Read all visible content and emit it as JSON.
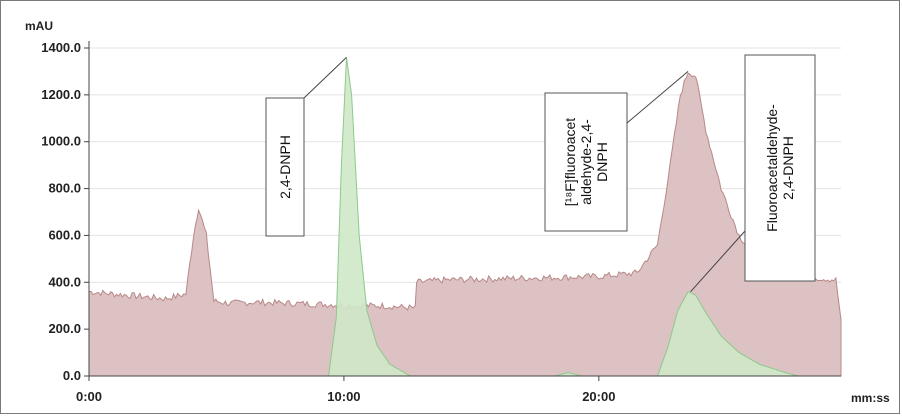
{
  "chart_data": {
    "type": "area",
    "y_unit": "mAU",
    "x_unit": "mm:ss",
    "ylim": [
      0,
      1400
    ],
    "xlim": [
      0,
      29.5
    ],
    "y_ticks": [
      "0.0",
      "200.0",
      "400.0",
      "600.0",
      "800.0",
      "1000.0",
      "1200.0",
      "1400.0"
    ],
    "y_tick_values": [
      0,
      200,
      400,
      600,
      800,
      1000,
      1200,
      1400
    ],
    "x_ticks": [
      "0:00",
      "10:00",
      "20:00"
    ],
    "x_tick_values": [
      0,
      10,
      20
    ],
    "grid": "horizontal",
    "colors": {
      "red_fill": "#dcc2c2",
      "red_line": "#b88888",
      "green_fill": "#cfe8c8",
      "green_line": "#8cc98c"
    },
    "series": [
      {
        "color": "red",
        "x": [
          0,
          1,
          2,
          3,
          3.8,
          4.1,
          4.3,
          4.6,
          4.9,
          5.5,
          6.5,
          8,
          9.5,
          10.5,
          11.5,
          12.8,
          12.85,
          14,
          16,
          18,
          20,
          21.5,
          22.3,
          22.8,
          23.2,
          23.5,
          23.8,
          24.2,
          24.8,
          25.5,
          26.5,
          27.5,
          28.5,
          29.3,
          29.5
        ],
        "values": [
          360,
          350,
          340,
          330,
          350,
          600,
          720,
          600,
          320,
          310,
          315,
          310,
          305,
          300,
          300,
          290,
          400,
          410,
          415,
          420,
          425,
          440,
          560,
          900,
          1200,
          1300,
          1280,
          1050,
          800,
          600,
          470,
          430,
          420,
          410,
          240
        ]
      },
      {
        "color": "green",
        "x": [
          0,
          9.4,
          9.7,
          9.9,
          10.1,
          10.3,
          10.6,
          10.9,
          11.3,
          11.8,
          12.6,
          18.3,
          18.8,
          19.3,
          22.3,
          22.7,
          23.1,
          23.5,
          23.8,
          24.2,
          24.8,
          25.5,
          26.3,
          27.3,
          27.8,
          29.5
        ],
        "values": [
          0,
          0,
          250,
          900,
          1360,
          1200,
          600,
          280,
          130,
          50,
          0,
          0,
          15,
          0,
          0,
          120,
          280,
          360,
          345,
          270,
          170,
          100,
          50,
          15,
          0,
          0
        ]
      }
    ],
    "annotations": [
      {
        "text_lines": [
          "2,4-DNPH"
        ],
        "target_x": 10.1,
        "target_y": 1360
      },
      {
        "text_lines": [
          "[¹⁸F]fluoroacet",
          "aldehyde-2,4-",
          "DNPH"
        ],
        "target_x": 23.5,
        "target_y": 1300
      },
      {
        "text_lines": [
          "Fluoroacetaldehyde-",
          "2,4-DNPH"
        ],
        "target_x": 23.6,
        "target_y": 360
      }
    ]
  }
}
